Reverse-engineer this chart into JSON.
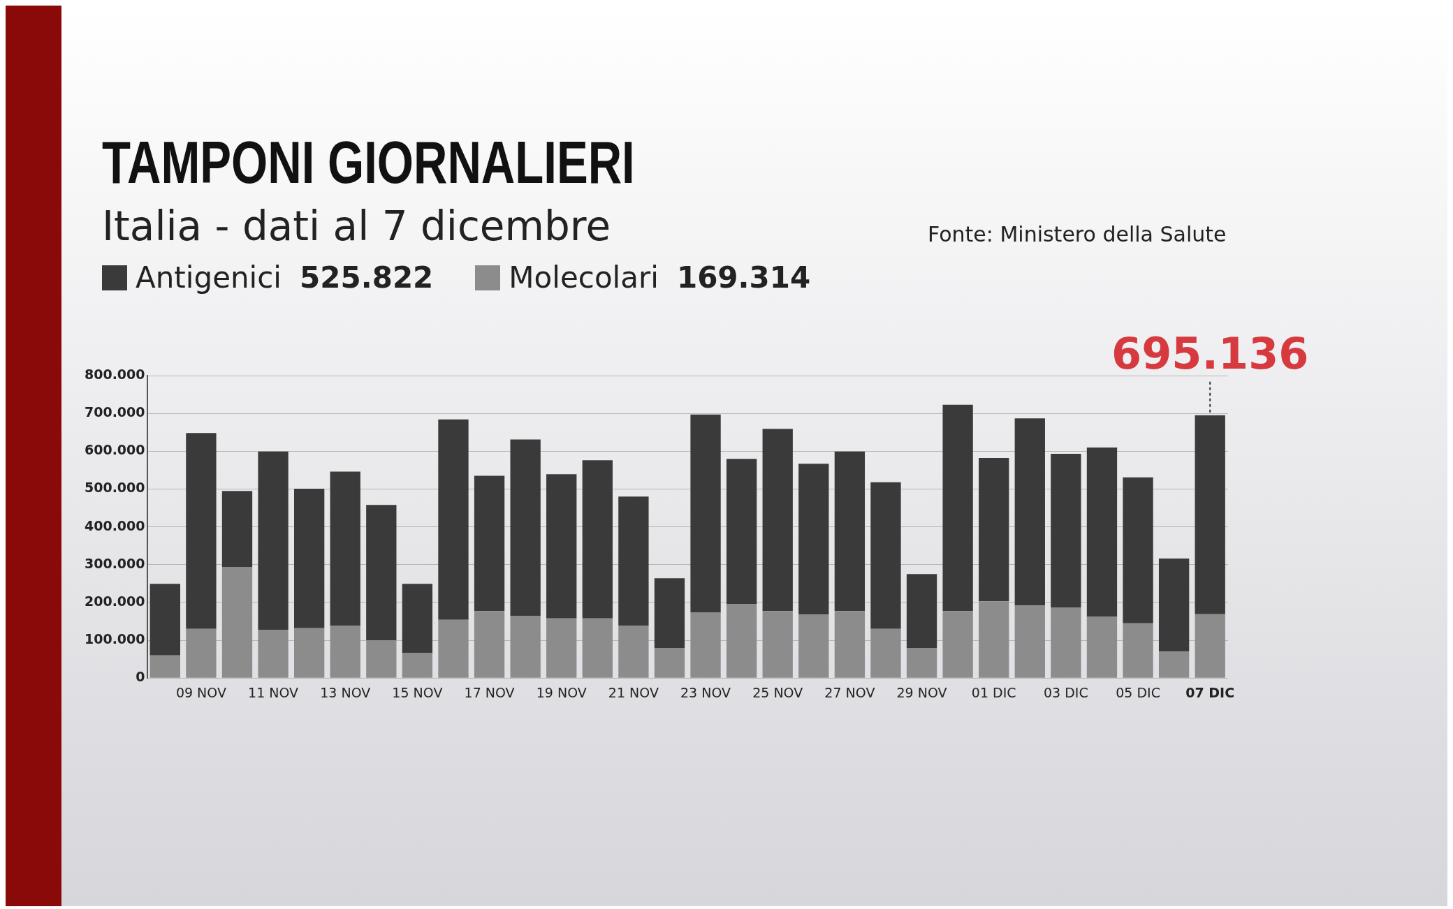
{
  "chart_data": {
    "type": "bar",
    "title": "TAMPONI GIORNALIERI",
    "subtitle": "Italia - dati al 7 dicembre",
    "categories": [
      null,
      "09 NOV",
      null,
      "11 NOV",
      null,
      "13 NOV",
      null,
      "15 NOV",
      null,
      "17 NOV",
      null,
      "19 NOV",
      null,
      "21 NOV",
      null,
      "23 NOV",
      null,
      "25 NOV",
      null,
      "27 NOV",
      null,
      "29 NOV",
      null,
      "01 DIC",
      null,
      "03 DIC",
      null,
      "05 DIC",
      null,
      "07 DIC"
    ],
    "stacked": true,
    "series": [
      {
        "name": "Molecolari",
        "color": "#8c8c8c",
        "values": [
          60000,
          130000,
          294000,
          128000,
          132000,
          139000,
          100000,
          66000,
          154000,
          177000,
          164000,
          158000,
          158000,
          139000,
          79000,
          173000,
          196000,
          177000,
          168000,
          177000,
          130000,
          79000,
          177000,
          203000,
          192000,
          186000,
          162000,
          145000,
          70000,
          169000
        ]
      },
      {
        "name": "Antigenici",
        "color": "#3a3a3a",
        "values": [
          189000,
          518000,
          201000,
          471000,
          369000,
          407000,
          358000,
          183000,
          530000,
          358000,
          467000,
          381000,
          418000,
          341000,
          185000,
          524000,
          384000,
          482000,
          399000,
          422000,
          388000,
          196000,
          546000,
          379000,
          495000,
          407000,
          448000,
          386000,
          246000,
          526000
        ]
      }
    ],
    "ylim": [
      0,
      800000
    ],
    "yticks": [
      {
        "value": 0,
        "label": "0"
      },
      {
        "value": 100000,
        "label": "100.000"
      },
      {
        "value": 200000,
        "label": "200.000"
      },
      {
        "value": 300000,
        "label": "300.000"
      },
      {
        "value": 400000,
        "label": "400.000"
      },
      {
        "value": 500000,
        "label": "500.000"
      },
      {
        "value": 600000,
        "label": "600.000"
      },
      {
        "value": 700000,
        "label": "700.000"
      },
      {
        "value": 800000,
        "label": "800.000"
      }
    ],
    "grid": "y",
    "legend": "top left",
    "annotations": [
      "Fonte: Ministero della Salute",
      "169.314",
      "525.822",
      {
        "text": "695.136",
        "x": "07 DIC",
        "y": 695136
      }
    ]
  }
}
